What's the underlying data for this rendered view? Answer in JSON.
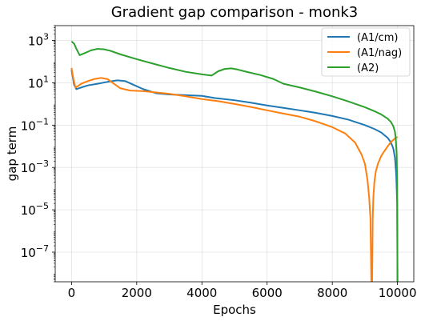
{
  "chart_data": {
    "type": "line",
    "title": "Gradient gap comparison - monk3",
    "xlabel": "Epochs",
    "ylabel": "gap term",
    "xlim": [
      -500,
      10500
    ],
    "ylim": [
      4e-09,
      5000
    ],
    "yscale": "log",
    "grid": true,
    "legend_position": "top-right",
    "x_ticks": [
      0,
      2000,
      4000,
      6000,
      8000,
      10000
    ],
    "x_tick_labels": [
      "0",
      "2000",
      "4000",
      "6000",
      "8000",
      "10000"
    ],
    "y_ticks": [
      1000.0,
      10.0,
      0.1,
      0.001,
      1e-05,
      1e-07
    ],
    "y_tick_labels": [
      {
        "base": "10",
        "exp": "3"
      },
      {
        "base": "10",
        "exp": "1"
      },
      {
        "base": "10",
        "exp": "−1"
      },
      {
        "base": "10",
        "exp": "−3"
      },
      {
        "base": "10",
        "exp": "−5"
      },
      {
        "base": "10",
        "exp": "−7"
      }
    ],
    "series": [
      {
        "name": "(A1/cm)",
        "color": "#1f77b4",
        "x": [
          0,
          80,
          150,
          300,
          500,
          800,
          1100,
          1400,
          1650,
          1900,
          2200,
          2600,
          3000,
          3500,
          4000,
          4400,
          5000,
          5500,
          6000,
          6500,
          7000,
          7500,
          8000,
          8500,
          9000,
          9300,
          9500,
          9700,
          9800,
          9870,
          9920,
          9960,
          9990,
          10000
        ],
        "y": [
          40,
          8,
          5,
          6,
          7.5,
          9,
          11,
          13,
          12,
          8,
          5,
          3.2,
          2.8,
          2.6,
          2.4,
          1.9,
          1.5,
          1.15,
          0.85,
          0.65,
          0.5,
          0.38,
          0.27,
          0.18,
          0.1,
          0.065,
          0.045,
          0.025,
          0.015,
          0.008,
          0.003,
          0.0005,
          2e-05,
          1e-09
        ]
      },
      {
        "name": "(A1/nag)",
        "color": "#ff7f0e",
        "x": [
          0,
          60,
          120,
          200,
          300,
          500,
          700,
          900,
          1100,
          1300,
          1500,
          1800,
          2200,
          2600,
          3000,
          3500,
          4000,
          4500,
          5000,
          5500,
          6000,
          6500,
          7000,
          7500,
          8000,
          8400,
          8700,
          8900,
          9000,
          9080,
          9130,
          9170,
          9200,
          9220,
          9240,
          9260,
          9290,
          9330,
          9400,
          9500,
          9600,
          9700,
          9800,
          9900,
          9950,
          10000
        ],
        "y": [
          50,
          15,
          6,
          7,
          9,
          12,
          15,
          17,
          15,
          9,
          5.5,
          4.3,
          4,
          3.5,
          3,
          2.3,
          1.7,
          1.35,
          1.0,
          0.72,
          0.5,
          0.35,
          0.25,
          0.15,
          0.08,
          0.04,
          0.015,
          0.004,
          0.0015,
          0.00025,
          4e-05,
          4e-06,
          1e-09,
          1e-09,
          4e-06,
          4e-05,
          0.0002,
          0.0006,
          0.0015,
          0.0035,
          0.006,
          0.01,
          0.016,
          0.022,
          0.025,
          0.028
        ]
      },
      {
        "name": "(A2)",
        "color": "#2ca02c",
        "x": [
          0,
          80,
          150,
          250,
          400,
          600,
          800,
          1000,
          1200,
          1500,
          2000,
          2500,
          3000,
          3500,
          4000,
          4300,
          4500,
          4700,
          4900,
          5100,
          5400,
          5800,
          6200,
          6500,
          7000,
          7500,
          8000,
          8500,
          9000,
          9300,
          9500,
          9700,
          9800,
          9870,
          9920,
          9950,
          9975,
          9990,
          10000
        ],
        "y": [
          900,
          700,
          400,
          200,
          250,
          340,
          400,
          380,
          320,
          220,
          130,
          80,
          50,
          33,
          25,
          22,
          35,
          45,
          48,
          42,
          32,
          23,
          15,
          9,
          6,
          3.8,
          2.3,
          1.3,
          0.7,
          0.45,
          0.32,
          0.2,
          0.14,
          0.09,
          0.05,
          0.02,
          0.004,
          0.0002,
          1e-09
        ]
      }
    ]
  }
}
